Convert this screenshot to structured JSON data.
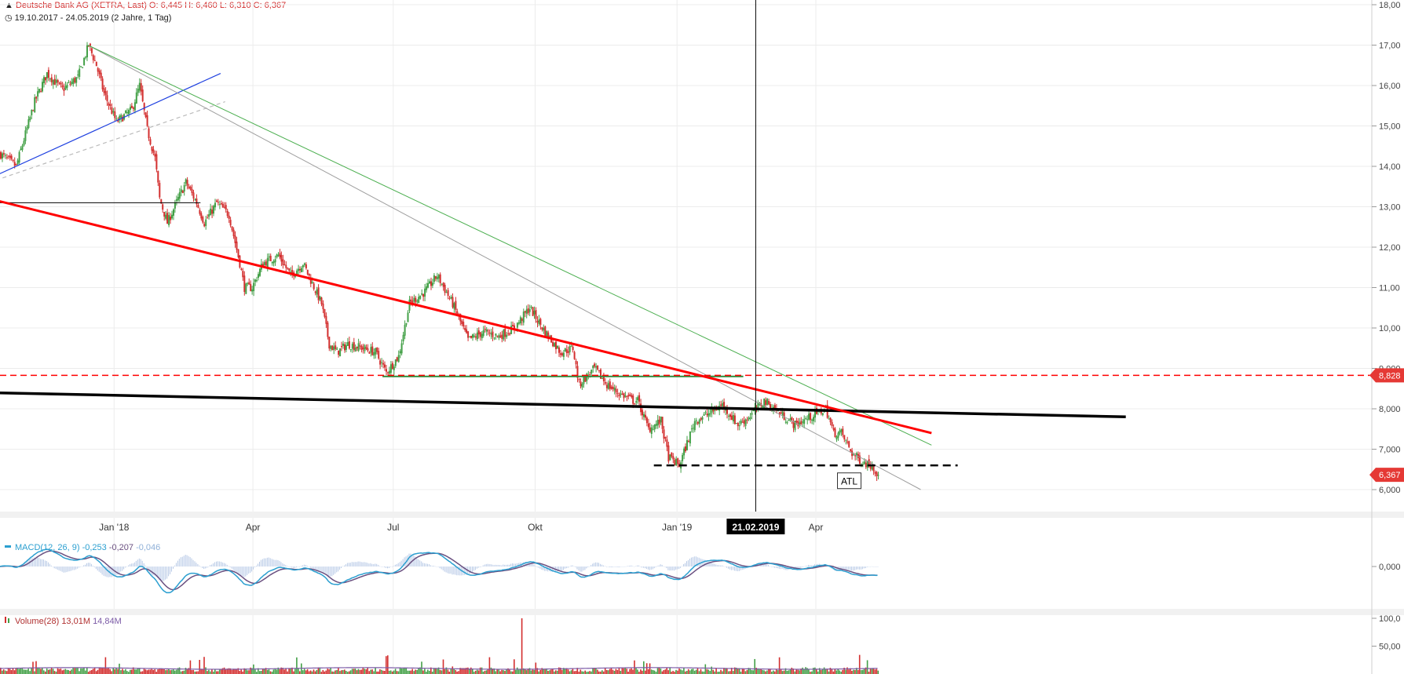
{
  "header": {
    "instrument": "Deutsche Bank AG (XETRA, Last)",
    "ohlc": "O: 6,445  H: 6,460  L: 6,310  C: 6,367",
    "range": "19.10.2017 - 24.05.2019",
    "period": "(2 Jahre, 1 Tag)"
  },
  "colors": {
    "up": "#43a047",
    "down": "#d32f2f",
    "trend_red": "#ff0000",
    "trend_green": "#4caf50",
    "trend_blue": "#1e40e0",
    "trend_gray": "#9e9e9e",
    "support_black": "#000000",
    "macd_line": "#2b9fd0",
    "signal_line": "#6a5080",
    "hist": "#b7c9e6",
    "volume_ma": "#7b5aa6"
  },
  "price_axis": {
    "ticks": [
      "18,00",
      "17,00",
      "16,00",
      "15,00",
      "14,00",
      "13,00",
      "12,00",
      "11,00",
      "10,00",
      "9,000",
      "8,000",
      "7,000",
      "6,000"
    ],
    "tick_values": [
      18,
      17,
      16,
      15,
      14,
      13,
      12,
      11,
      10,
      9,
      8,
      7,
      6
    ],
    "markers": [
      {
        "label": "8,828",
        "value": 8.828,
        "color": "#e53935"
      },
      {
        "label": "6,367",
        "value": 6.367,
        "color": "#e53935"
      }
    ]
  },
  "time_axis": {
    "labels": [
      "Jan '18",
      "Apr",
      "Jul",
      "Okt",
      "Jan '19",
      "Apr"
    ],
    "label_days": [
      74,
      164,
      255,
      347,
      439,
      529
    ],
    "crosshair_label": "21.02.2019",
    "crosshair_day": 490
  },
  "macd": {
    "label": "MACD(12, 26, 9)",
    "values": [
      "-0,253",
      "-0,207",
      "-0,046"
    ],
    "axis_label": "0,000"
  },
  "volume": {
    "label": "Volume(28)",
    "values": [
      "13,01M",
      "14,84M"
    ],
    "axis_labels": [
      "100,0",
      "50,00"
    ]
  },
  "annotation": {
    "label": "ATL"
  },
  "chart_data": {
    "type": "candlestick",
    "title": "Deutsche Bank AG (XETRA, Last)",
    "last_close": 6.367,
    "ylim": [
      5.7,
      18.1
    ],
    "x_unit": "trading days since 19.10.2017",
    "xlim": [
      0,
      595
    ],
    "path": [
      [
        0,
        14.3
      ],
      [
        10,
        14.0
      ],
      [
        22,
        15.6
      ],
      [
        30,
        16.3
      ],
      [
        40,
        15.9
      ],
      [
        50,
        16.2
      ],
      [
        57,
        17.0
      ],
      [
        62,
        16.5
      ],
      [
        67,
        15.8
      ],
      [
        75,
        15.1
      ],
      [
        85,
        15.4
      ],
      [
        90,
        16.0
      ],
      [
        95,
        14.9
      ],
      [
        100,
        14.2
      ],
      [
        103,
        13.2
      ],
      [
        108,
        12.6
      ],
      [
        115,
        13.2
      ],
      [
        120,
        13.6
      ],
      [
        127,
        13.1
      ],
      [
        132,
        12.6
      ],
      [
        140,
        13.1
      ],
      [
        148,
        12.8
      ],
      [
        155,
        11.6
      ],
      [
        158,
        11.0
      ],
      [
        163,
        11.0
      ],
      [
        170,
        11.6
      ],
      [
        180,
        11.8
      ],
      [
        188,
        11.3
      ],
      [
        196,
        11.6
      ],
      [
        202,
        11.1
      ],
      [
        208,
        10.6
      ],
      [
        213,
        9.6
      ],
      [
        218,
        9.4
      ],
      [
        225,
        9.6
      ],
      [
        235,
        9.5
      ],
      [
        243,
        9.4
      ],
      [
        250,
        8.9
      ],
      [
        258,
        9.3
      ],
      [
        265,
        10.6
      ],
      [
        275,
        10.9
      ],
      [
        283,
        11.3
      ],
      [
        293,
        10.6
      ],
      [
        303,
        9.7
      ],
      [
        313,
        9.9
      ],
      [
        323,
        9.8
      ],
      [
        333,
        10.0
      ],
      [
        343,
        10.5
      ],
      [
        353,
        9.9
      ],
      [
        363,
        9.4
      ],
      [
        371,
        9.5
      ],
      [
        375,
        8.6
      ],
      [
        385,
        9.0
      ],
      [
        393,
        8.6
      ],
      [
        400,
        8.4
      ],
      [
        410,
        8.2
      ],
      [
        413,
        8.2
      ],
      [
        420,
        7.5
      ],
      [
        428,
        7.7
      ],
      [
        433,
        6.8
      ],
      [
        440,
        6.6
      ],
      [
        450,
        7.7
      ],
      [
        460,
        7.9
      ],
      [
        468,
        8.1
      ],
      [
        478,
        7.6
      ],
      [
        485,
        7.8
      ],
      [
        495,
        8.2
      ],
      [
        505,
        7.9
      ],
      [
        515,
        7.6
      ],
      [
        525,
        7.8
      ],
      [
        535,
        8.0
      ],
      [
        540,
        7.4
      ],
      [
        545,
        7.4
      ],
      [
        552,
        6.9
      ],
      [
        558,
        6.7
      ],
      [
        565,
        6.6
      ],
      [
        569,
        6.367
      ]
    ],
    "volume_spike": {
      "day": 338,
      "value": 100
    }
  },
  "drawings": {
    "red_trend": {
      "from": [
        -7,
        13.2
      ],
      "to": [
        604,
        7.4
      ]
    },
    "green_trend": {
      "from": [
        57,
        17.0
      ],
      "to": [
        604,
        7.1
      ]
    },
    "gray_trend": {
      "from": [
        57,
        17.0
      ],
      "to": [
        597,
        6.0
      ]
    },
    "blue_trend": {
      "from": [
        -7,
        13.7
      ],
      "to": [
        143,
        16.3
      ]
    },
    "gray_dashed": {
      "from": [
        -7,
        13.6
      ],
      "to": [
        146,
        15.6
      ]
    },
    "black_support": {
      "from": [
        -7,
        8.4
      ],
      "to": [
        730,
        7.8
      ]
    },
    "black_hline": {
      "from": [
        -7,
        13.1
      ],
      "to": [
        130,
        13.1
      ]
    },
    "green_zone": {
      "from": [
        248,
        8.8
      ],
      "to": [
        482,
        8.8
      ]
    },
    "red_dashed": {
      "value": 8.828
    },
    "black_dashed": {
      "from": [
        424,
        6.6
      ],
      "to": [
        621,
        6.6
      ]
    }
  }
}
